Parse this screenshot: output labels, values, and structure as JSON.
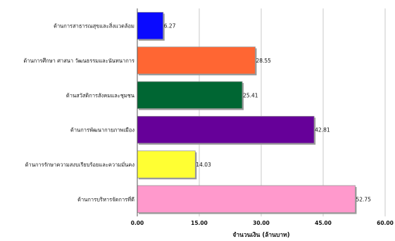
{
  "chart_data": {
    "type": "bar",
    "orientation": "horizontal",
    "title": "",
    "xlabel": "จำนวนเงิน (ล้านบาท)",
    "ylabel": "",
    "xlim": [
      0,
      60
    ],
    "x_ticks": [
      "0.00",
      "15.00",
      "30.00",
      "45.00",
      "60.00"
    ],
    "grid": "vertical",
    "legend": "none",
    "categories": [
      "ด้านการสาธารณสุขและสิ่งแวดล้อม",
      "ด้านการศึกษา ศาสนา วัฒนธรรมและนันทนาการ",
      "ด้านสวัสดิการสังคมและชุมชน",
      "ด้านการพัฒนากายภาพเมือง",
      "ด้านการรักษาความสงบเรียบร้อยและความมั่นคง",
      "ด้านการบริหารจัดการที่ดี"
    ],
    "values": [
      6.27,
      28.55,
      25.41,
      42.81,
      14.03,
      52.75
    ],
    "value_labels": [
      "6.27",
      "28.55",
      "25.41",
      "42.81",
      "14.03",
      "52.75"
    ],
    "colors": [
      "#0a0aff",
      "#ff6633",
      "#006633",
      "#660099",
      "#ffff33",
      "#ff99cc"
    ]
  }
}
